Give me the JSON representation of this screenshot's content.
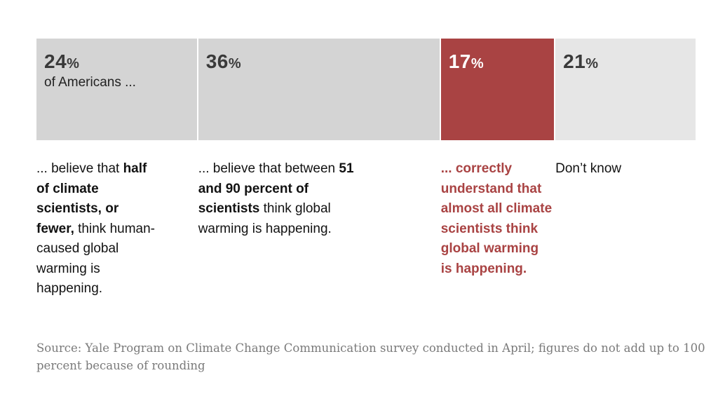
{
  "chart_data": {
    "type": "bar",
    "stacked": true,
    "orientation": "horizontal",
    "categories": [
      "half of climate scientists, or fewer",
      "51 and 90 percent of scientists",
      "almost all climate scientists",
      "Don’t know"
    ],
    "values": [
      24,
      36,
      17,
      21
    ],
    "unit": "%",
    "intro_label": "of Americans ...",
    "captions": [
      {
        "pre": "... believe that ",
        "bold": "half of climate scientists, or fewer,",
        "post": " think human-caused global warming is happening."
      },
      {
        "pre": "... believe that between ",
        "bold": "51 and 90 percent of scientists",
        "post": " think global warming is happening."
      },
      {
        "pre": "",
        "bold": "... correctly understand that almost all climate scientists think global warming is happening.",
        "post": ""
      },
      {
        "pre": "Don’t know",
        "bold": "",
        "post": ""
      }
    ],
    "highlight_index": 2,
    "colors": {
      "default": "#d4d4d4",
      "highlight": "#a94343",
      "unknown": "#e6e6e6"
    }
  },
  "source": "Source: Yale Program on Climate Change Communication survey conducted in April; figures do not add up to 100 percent because of rounding"
}
